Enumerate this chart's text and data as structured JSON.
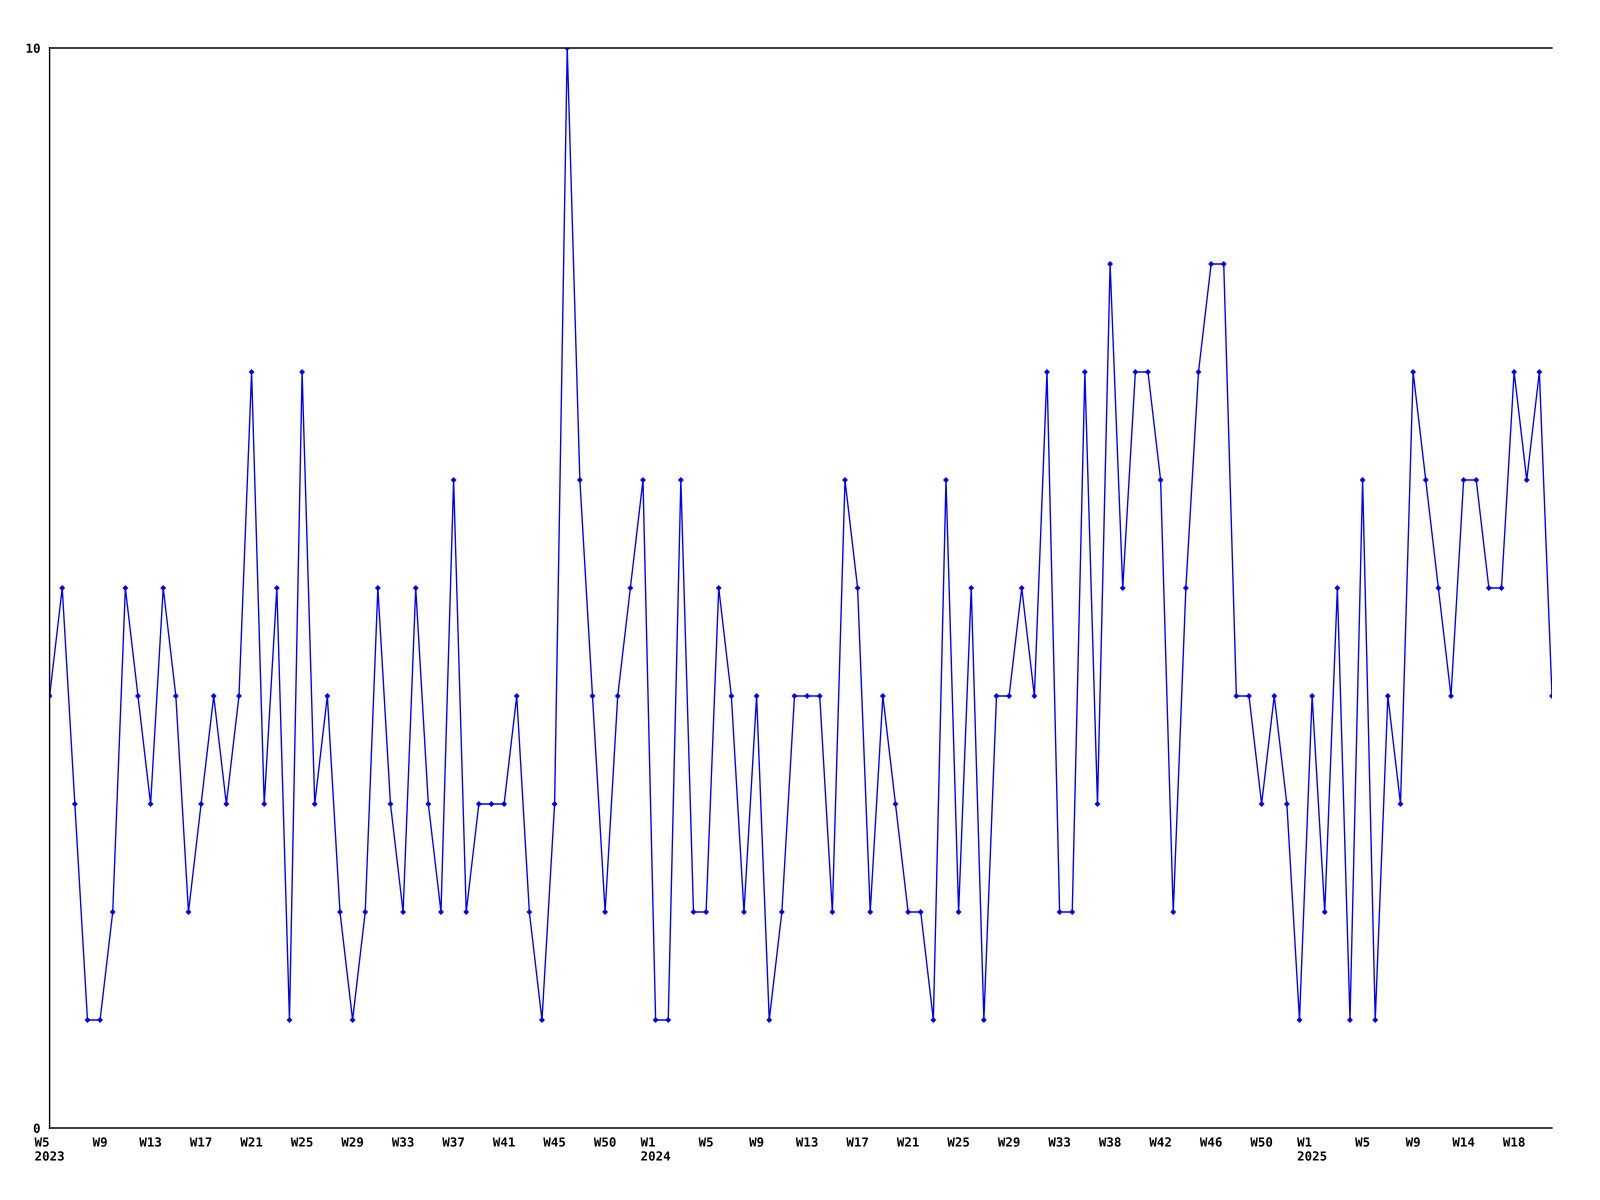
{
  "chart_data": {
    "type": "line",
    "categories": [
      "W5\n2023",
      null,
      null,
      null,
      "W9",
      null,
      null,
      null,
      "W13",
      null,
      null,
      null,
      "W17",
      null,
      null,
      null,
      "W21",
      null,
      null,
      null,
      "W25",
      null,
      null,
      null,
      "W29",
      null,
      null,
      null,
      "W33",
      null,
      null,
      null,
      "W37",
      null,
      null,
      null,
      "W41",
      null,
      null,
      null,
      "W45",
      null,
      null,
      null,
      "W50",
      null,
      null,
      null,
      "W1\n2024",
      null,
      null,
      null,
      "W5",
      null,
      null,
      null,
      "W9",
      null,
      null,
      null,
      "W13",
      null,
      null,
      null,
      "W17",
      null,
      null,
      null,
      "W21",
      null,
      null,
      null,
      "W25",
      null,
      null,
      null,
      "W29",
      null,
      null,
      null,
      "W33",
      null,
      null,
      null,
      "W38",
      null,
      null,
      null,
      "W42",
      null,
      null,
      null,
      "W46",
      null,
      null,
      null,
      "W50",
      null,
      null,
      null,
      "W1\n2025",
      null,
      null,
      null,
      "W5",
      null,
      null,
      null,
      "W9",
      null,
      null,
      null,
      "W14",
      null,
      null,
      null,
      "W18",
      null,
      null,
      null
    ],
    "values": [
      4,
      5,
      3,
      1,
      1,
      2,
      5,
      4,
      3,
      5,
      4,
      2,
      3,
      4,
      3,
      4,
      7,
      3,
      5,
      1,
      7,
      3,
      4,
      2,
      1,
      2,
      5,
      3,
      2,
      5,
      3,
      2,
      6,
      2,
      3,
      3,
      3,
      4,
      2,
      1,
      3,
      10,
      6,
      4,
      2,
      4,
      5,
      6,
      1,
      1,
      6,
      2,
      2,
      5,
      4,
      2,
      4,
      1,
      2,
      4,
      4,
      4,
      2,
      6,
      5,
      2,
      4,
      3,
      2,
      2,
      1,
      6,
      2,
      5,
      1,
      4,
      4,
      5,
      4,
      7,
      2,
      2,
      7,
      3,
      8,
      5,
      7,
      7,
      6,
      2,
      5,
      7,
      8,
      8,
      4,
      4,
      3,
      4,
      3,
      1,
      4,
      2,
      5,
      1,
      6,
      1,
      4,
      3,
      7,
      6,
      5,
      4,
      6,
      6,
      5,
      5,
      7,
      6,
      7,
      4
    ],
    "color": "#0000ff",
    "ylim": [
      0,
      10
    ],
    "yticks": [
      0,
      10
    ],
    "marker": "diamond",
    "grid": false,
    "legend": false
  }
}
